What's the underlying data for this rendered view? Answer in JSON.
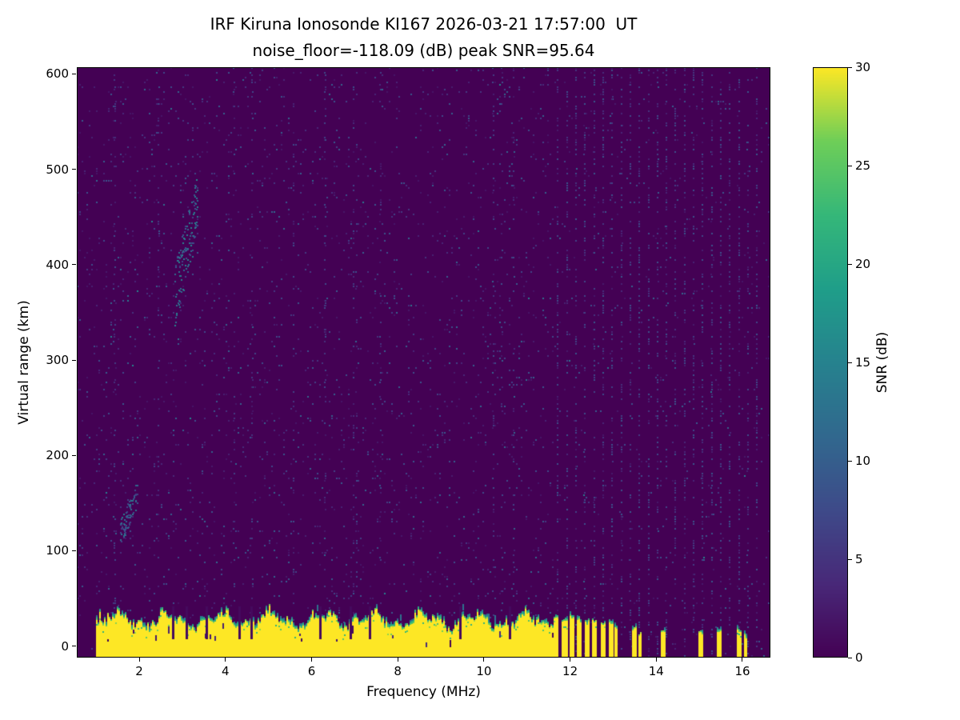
{
  "chart_data": {
    "type": "heatmap",
    "title": "IRF Kiruna Ionosonde KI167 2026-03-21 17:57:00  UT",
    "subtitle": "noise_floor=-118.09 (dB) peak SNR=95.64",
    "observatory": "IRF Kiruna Ionosonde",
    "station": "KI167",
    "timestamp_ut": "2026-03-21 17:57:00",
    "noise_floor_db": -118.09,
    "peak_snr_db": 95.64,
    "xlabel": "Frequency (MHz)",
    "ylabel": "Virtual range (km)",
    "xlim": [
      0.55,
      16.65
    ],
    "ylim": [
      -12,
      607
    ],
    "xticks": [
      2,
      4,
      6,
      8,
      10,
      12,
      14,
      16
    ],
    "yticks": [
      0,
      100,
      200,
      300,
      400,
      500,
      600
    ],
    "grid": false,
    "colorbar": {
      "label": "SNR (dB)",
      "min": 0,
      "max": 30,
      "ticks": [
        0,
        5,
        10,
        15,
        20,
        25,
        30
      ],
      "colormap": "viridis"
    },
    "features": {
      "background_snr_db": 0,
      "speckle_noise_snr_db": [
        2,
        12
      ],
      "ground_clutter_band": {
        "freq_mhz": [
          1.0,
          11.62
        ],
        "virtual_range_km": [
          -12,
          30
        ],
        "snr_db": "saturated at colorbar max (>=30)",
        "note": "solid yellow band with ragged green top edge and sporadic dark notches"
      },
      "intermittent_clutter_bars_mhz": [
        11.67,
        11.87,
        12.04,
        12.21,
        12.4,
        12.57,
        12.76,
        12.94,
        13.07
      ],
      "isolated_clutter_bars_mhz": [
        13.48,
        13.62,
        14.15,
        15.03,
        15.45,
        15.92,
        16.07
      ],
      "weak_echo_clusters": [
        {
          "freq_mhz": [
            2.8,
            3.35
          ],
          "virtual_range_km": [
            330,
            500
          ],
          "snr_db": [
            6,
            16
          ]
        },
        {
          "freq_mhz": [
            1.55,
            1.95
          ],
          "virtual_range_km": [
            105,
            175
          ],
          "snr_db": [
            6,
            14
          ]
        }
      ],
      "rfi_columns": "faint periodic speckled vertical lines every ~0.21 MHz from 11.7 to 16.45 MHz"
    },
    "render": {
      "seed": 167,
      "speckle_density": 0.05,
      "streaks": 14,
      "band": {
        "f_start": 1.0,
        "f_end": 11.62,
        "top_km_base": 26,
        "top_km_jitter": 9
      },
      "notches_mhz": [
        2.78,
        3.1,
        3.55,
        4.32,
        4.6,
        6.2,
        6.9,
        7.35,
        9.45,
        10.6
      ],
      "bars": [
        [
          11.67,
          0.05,
          28
        ],
        [
          11.87,
          0.05,
          26
        ],
        [
          12.04,
          0.04,
          30
        ],
        [
          12.21,
          0.05,
          27
        ],
        [
          12.4,
          0.045,
          24
        ],
        [
          12.57,
          0.05,
          26
        ],
        [
          12.76,
          0.04,
          22
        ],
        [
          12.94,
          0.04,
          24
        ],
        [
          13.07,
          0.03,
          20
        ]
      ],
      "sparse_bars": [
        [
          13.48,
          0.04,
          18
        ],
        [
          13.62,
          0.03,
          12
        ],
        [
          14.15,
          0.04,
          16
        ],
        [
          15.03,
          0.035,
          14
        ],
        [
          15.45,
          0.04,
          16
        ],
        [
          15.92,
          0.04,
          15
        ],
        [
          16.07,
          0.03,
          10
        ]
      ],
      "periodic_columns": {
        "f_start": 11.7,
        "f_end": 16.45,
        "step": 0.21,
        "density": 0.3
      }
    }
  }
}
